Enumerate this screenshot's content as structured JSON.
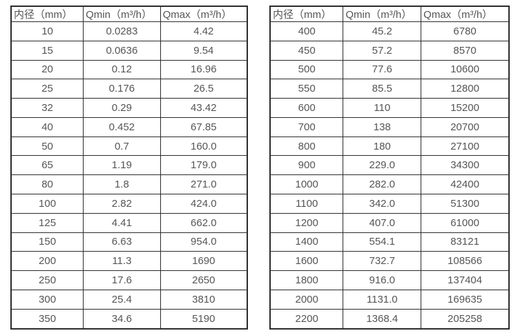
{
  "colors": {
    "background": "#ffffff",
    "border": "#2b2b2b",
    "text": "#555555"
  },
  "tables": [
    {
      "headers": [
        "内径（mm）",
        "Qmin（m³/h）",
        "Qmax（m³/h）"
      ],
      "rows": [
        [
          "10",
          "0.0283",
          "4.42"
        ],
        [
          "15",
          "0.0636",
          "9.54"
        ],
        [
          "20",
          "0.12",
          "16.96"
        ],
        [
          "25",
          "0.176",
          "26.5"
        ],
        [
          "32",
          "0.29",
          "43.42"
        ],
        [
          "40",
          "0.452",
          "67.85"
        ],
        [
          "50",
          "0.7",
          "160.0"
        ],
        [
          "65",
          "1.19",
          "179.0"
        ],
        [
          "80",
          "1.8",
          "271.0"
        ],
        [
          "100",
          "2.82",
          "424.0"
        ],
        [
          "125",
          "4.41",
          "662.0"
        ],
        [
          "150",
          "6.63",
          "954.0"
        ],
        [
          "200",
          "11.3",
          "1690"
        ],
        [
          "250",
          "17.6",
          "2650"
        ],
        [
          "300",
          "25.4",
          "3810"
        ],
        [
          "350",
          "34.6",
          "5190"
        ]
      ]
    },
    {
      "headers": [
        "内径（mm）",
        "Qmin（m³/h）",
        "Qmax（m³/h）"
      ],
      "rows": [
        [
          "400",
          "45.2",
          "6780"
        ],
        [
          "450",
          "57.2",
          "8570"
        ],
        [
          "500",
          "77.6",
          "10600"
        ],
        [
          "550",
          "85.5",
          "12800"
        ],
        [
          "600",
          "110",
          "15200"
        ],
        [
          "700",
          "138",
          "20700"
        ],
        [
          "800",
          "180",
          "27100"
        ],
        [
          "900",
          "229.0",
          "34300"
        ],
        [
          "1000",
          "282.0",
          "42400"
        ],
        [
          "1100",
          "342.0",
          "51300"
        ],
        [
          "1200",
          "407.0",
          "61000"
        ],
        [
          "1400",
          "554.1",
          "83121"
        ],
        [
          "1600",
          "732.7",
          "108566"
        ],
        [
          "1800",
          "916.0",
          "137404"
        ],
        [
          "2000",
          "1131.0",
          "169635"
        ],
        [
          "2200",
          "1368.4",
          "205258"
        ]
      ]
    }
  ]
}
